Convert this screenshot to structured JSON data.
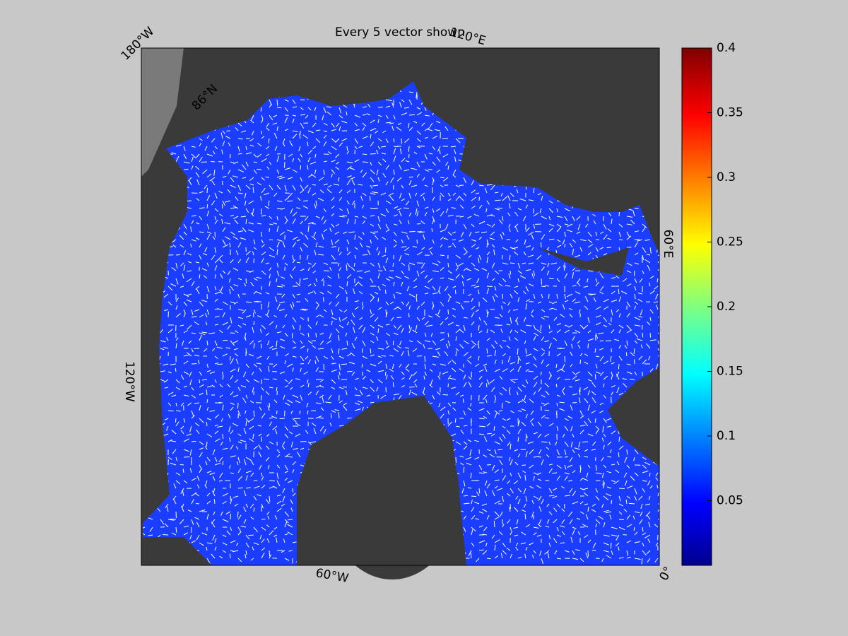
{
  "chart_data": {
    "type": "map",
    "title": "Every 5 vector shown",
    "grid_labels": [
      "180°W",
      "120°E",
      "60°E",
      "0°",
      "60°W",
      "120°W",
      "86°N"
    ],
    "colorbar": {
      "clim": [
        0,
        0.4
      ],
      "ticks": [
        0.05,
        0.1,
        0.15,
        0.2,
        0.25,
        0.3,
        0.35,
        0.4
      ]
    }
  }
}
